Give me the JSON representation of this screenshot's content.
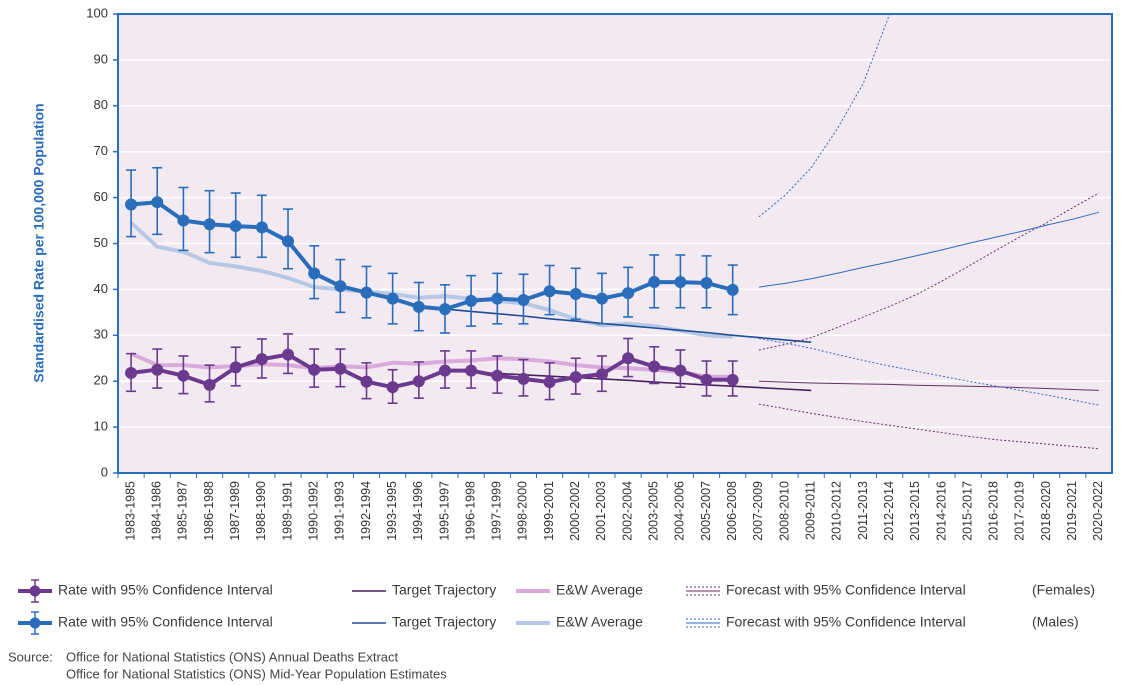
{
  "chart_data": {
    "type": "line",
    "y_label": "Standardised Rate per 100,000 Population",
    "categories": [
      "1983-1985",
      "1984-1986",
      "1985-1987",
      "1986-1988",
      "1987-1989",
      "1988-1990",
      "1989-1991",
      "1990-1992",
      "1991-1993",
      "1992-1994",
      "1993-1995",
      "1994-1996",
      "1995-1997",
      "1996-1998",
      "1997-1999",
      "1998-2000",
      "1999-2001",
      "2000-2002",
      "2001-2003",
      "2002-2004",
      "2003-2005",
      "2004-2006",
      "2005-2007",
      "2006-2008",
      "2007-2009",
      "2008-2010",
      "2009-2011",
      "2010-2012",
      "2011-2013",
      "2012-2014",
      "2013-2015",
      "2014-2016",
      "2015-2017",
      "2016-2018",
      "2017-2019",
      "2018-2020",
      "2019-2021",
      "2020-2022"
    ],
    "ylim": [
      0,
      100
    ],
    "yticks": [
      0,
      10,
      20,
      30,
      40,
      50,
      60,
      70,
      80,
      90,
      100
    ],
    "grid": true,
    "background": "#f3e9f1",
    "groups": [
      {
        "label": "(Females)",
        "series": [
          {
            "name": "Rate with 95% Confidence Interval",
            "style": "markers",
            "color": "#6b3a8e",
            "values": [
              21.8,
              22.5,
              21.2,
              19.2,
              23.0,
              24.8,
              25.8,
              22.5,
              22.7,
              19.9,
              18.7,
              20.0,
              22.3,
              22.3,
              21.2,
              20.5,
              19.8,
              20.9,
              21.5,
              25.0,
              23.2,
              22.3,
              20.3,
              20.3,
              null,
              null,
              null,
              null,
              null,
              null,
              null,
              null,
              null,
              null,
              null,
              null,
              null,
              null
            ],
            "ci_low": [
              17.8,
              18.5,
              17.3,
              15.5,
              19.0,
              20.7,
              21.7,
              18.7,
              18.8,
              16.2,
              15.2,
              16.3,
              18.5,
              18.5,
              17.4,
              16.8,
              16.0,
              17.2,
              17.8,
              21.0,
              19.5,
              18.7,
              16.8,
              16.8,
              null,
              null,
              null,
              null,
              null,
              null,
              null,
              null,
              null,
              null,
              null,
              null,
              null,
              null
            ],
            "ci_high": [
              26.0,
              27.0,
              25.5,
              23.5,
              27.4,
              29.2,
              30.3,
              27.0,
              27.0,
              24.0,
              22.5,
              24.2,
              26.6,
              26.6,
              25.5,
              24.7,
              24.0,
              25.0,
              25.5,
              29.3,
              27.5,
              26.8,
              24.4,
              24.4,
              null,
              null,
              null,
              null,
              null,
              null,
              null,
              null,
              null,
              null,
              null,
              null,
              null,
              null
            ]
          },
          {
            "name": "Target Trajectory",
            "style": "thin",
            "color": "#4a1f5e",
            "values": [
              null,
              null,
              null,
              null,
              null,
              null,
              null,
              null,
              null,
              null,
              null,
              null,
              22.3,
              22.0,
              21.7,
              21.4,
              21.1,
              20.8,
              20.5,
              20.2,
              19.8,
              19.5,
              19.2,
              18.9,
              18.6,
              18.3,
              18.0,
              null,
              null,
              null,
              null,
              null,
              null,
              null,
              null,
              null,
              null,
              null
            ]
          },
          {
            "name": "E&W Average",
            "style": "thick",
            "color": "#d9abdc",
            "values": [
              26.0,
              23.5,
              23.5,
              23.0,
              23.3,
              23.7,
              23.5,
              22.8,
              23.3,
              23.0,
              24.0,
              23.8,
              24.3,
              24.5,
              25.0,
              24.8,
              24.3,
              23.5,
              23.0,
              22.8,
              22.5,
              22.0,
              21.0,
              21.0,
              null,
              null,
              null,
              null,
              null,
              null,
              null,
              null,
              null,
              null,
              null,
              null,
              null,
              null
            ]
          },
          {
            "name": "Forecast with 95% Confidence Interval",
            "style": "forecast",
            "color": "#6b2f6b",
            "values": [
              null,
              null,
              null,
              null,
              null,
              null,
              null,
              null,
              null,
              null,
              null,
              null,
              null,
              null,
              null,
              null,
              null,
              null,
              null,
              null,
              null,
              null,
              null,
              null,
              20.0,
              19.8,
              19.6,
              19.5,
              19.4,
              19.3,
              19.1,
              19.0,
              18.9,
              18.8,
              18.6,
              18.4,
              18.2,
              18.0
            ],
            "ci_low": [
              null,
              null,
              null,
              null,
              null,
              null,
              null,
              null,
              null,
              null,
              null,
              null,
              null,
              null,
              null,
              null,
              null,
              null,
              null,
              null,
              null,
              null,
              null,
              null,
              15.0,
              14.0,
              13.0,
              12.1,
              11.2,
              10.4,
              9.6,
              8.8,
              8.0,
              7.3,
              6.8,
              6.3,
              5.8,
              5.3
            ],
            "ci_high": [
              null,
              null,
              null,
              null,
              null,
              null,
              null,
              null,
              null,
              null,
              null,
              null,
              null,
              null,
              null,
              null,
              null,
              null,
              null,
              null,
              null,
              null,
              null,
              null,
              26.8,
              28.0,
              29.5,
              31.7,
              34.0,
              36.3,
              38.8,
              41.8,
              45.0,
              48.3,
              51.5,
              54.5,
              57.8,
              61.0
            ]
          }
        ]
      },
      {
        "label": "(Males)",
        "series": [
          {
            "name": "Rate with 95% Confidence Interval",
            "style": "markers",
            "color": "#2a6ebb",
            "values": [
              58.5,
              59.0,
              55.0,
              54.2,
              53.8,
              53.5,
              50.5,
              43.5,
              40.7,
              39.3,
              38.0,
              36.2,
              35.7,
              37.5,
              38.0,
              37.7,
              39.6,
              39.0,
              38.0,
              39.2,
              41.6,
              41.6,
              41.4,
              39.9,
              null,
              null,
              null,
              null,
              null,
              null,
              null,
              null,
              null,
              null,
              null,
              null,
              null,
              null
            ],
            "ci_low": [
              51.5,
              52.0,
              48.5,
              48.0,
              47.0,
              47.0,
              44.5,
              38.0,
              35.0,
              33.8,
              32.5,
              31.0,
              30.5,
              32.0,
              32.5,
              32.5,
              34.5,
              33.5,
              32.5,
              34.0,
              36.0,
              36.0,
              36.0,
              34.5,
              null,
              null,
              null,
              null,
              null,
              null,
              null,
              null,
              null,
              null,
              null,
              null,
              null,
              null
            ],
            "ci_high": [
              66.0,
              66.5,
              62.2,
              61.5,
              61.0,
              60.5,
              57.5,
              49.5,
              46.5,
              45.0,
              43.5,
              41.5,
              41.0,
              43.0,
              43.5,
              43.3,
              45.2,
              44.6,
              43.5,
              44.8,
              47.5,
              47.5,
              47.3,
              45.3,
              null,
              null,
              null,
              null,
              null,
              null,
              null,
              null,
              null,
              null,
              null,
              null,
              null,
              null
            ]
          },
          {
            "name": "Target Trajectory",
            "style": "thin",
            "color": "#1f4e96",
            "values": [
              null,
              null,
              null,
              null,
              null,
              null,
              null,
              null,
              null,
              null,
              null,
              null,
              35.7,
              35.2,
              34.7,
              34.2,
              33.6,
              33.1,
              32.6,
              32.1,
              31.6,
              31.1,
              30.6,
              30.0,
              29.5,
              29.0,
              28.5,
              null,
              null,
              null,
              null,
              null,
              null,
              null,
              null,
              null,
              null,
              null
            ]
          },
          {
            "name": "E&W Average",
            "style": "thick",
            "color": "#b6c8e6",
            "values": [
              54.5,
              49.3,
              48.2,
              45.8,
              45.0,
              44.0,
              42.5,
              40.5,
              40.0,
              39.5,
              39.0,
              38.2,
              38.5,
              38.0,
              37.5,
              37.0,
              35.5,
              33.5,
              32.2,
              32.5,
              32.0,
              31.0,
              30.0,
              29.7,
              null,
              null,
              null,
              null,
              null,
              null,
              null,
              null,
              null,
              null,
              null,
              null,
              null,
              null
            ]
          },
          {
            "name": "Forecast with 95% Confidence Interval",
            "style": "forecast",
            "color": "#2e6bbf",
            "values": [
              null,
              null,
              null,
              null,
              null,
              null,
              null,
              null,
              null,
              null,
              null,
              null,
              null,
              null,
              null,
              null,
              null,
              null,
              null,
              null,
              null,
              null,
              null,
              null,
              40.5,
              41.3,
              42.3,
              43.5,
              44.8,
              46.0,
              47.3,
              48.6,
              50.0,
              51.3,
              52.6,
              54.0,
              55.3,
              56.8
            ],
            "ci_low": [
              null,
              null,
              null,
              null,
              null,
              null,
              null,
              null,
              null,
              null,
              null,
              null,
              null,
              null,
              null,
              null,
              null,
              null,
              null,
              null,
              null,
              null,
              null,
              null,
              29.3,
              28.3,
              27.2,
              25.8,
              24.5,
              23.3,
              22.2,
              21.1,
              20.0,
              19.0,
              18.0,
              17.0,
              15.9,
              14.8
            ],
            "ci_high": [
              null,
              null,
              null,
              null,
              null,
              null,
              null,
              null,
              null,
              null,
              null,
              null,
              null,
              null,
              null,
              null,
              null,
              null,
              null,
              null,
              null,
              null,
              null,
              null,
              55.8,
              60.5,
              66.5,
              75.0,
              85.0,
              100.0,
              null,
              null,
              null,
              null,
              null,
              null,
              null,
              null
            ]
          }
        ]
      }
    ],
    "source_label": "Source:",
    "source_lines": [
      "Office for National Statistics (ONS) Annual Deaths Extract",
      "Office for National Statistics (ONS) Mid-Year Population Estimates"
    ]
  }
}
